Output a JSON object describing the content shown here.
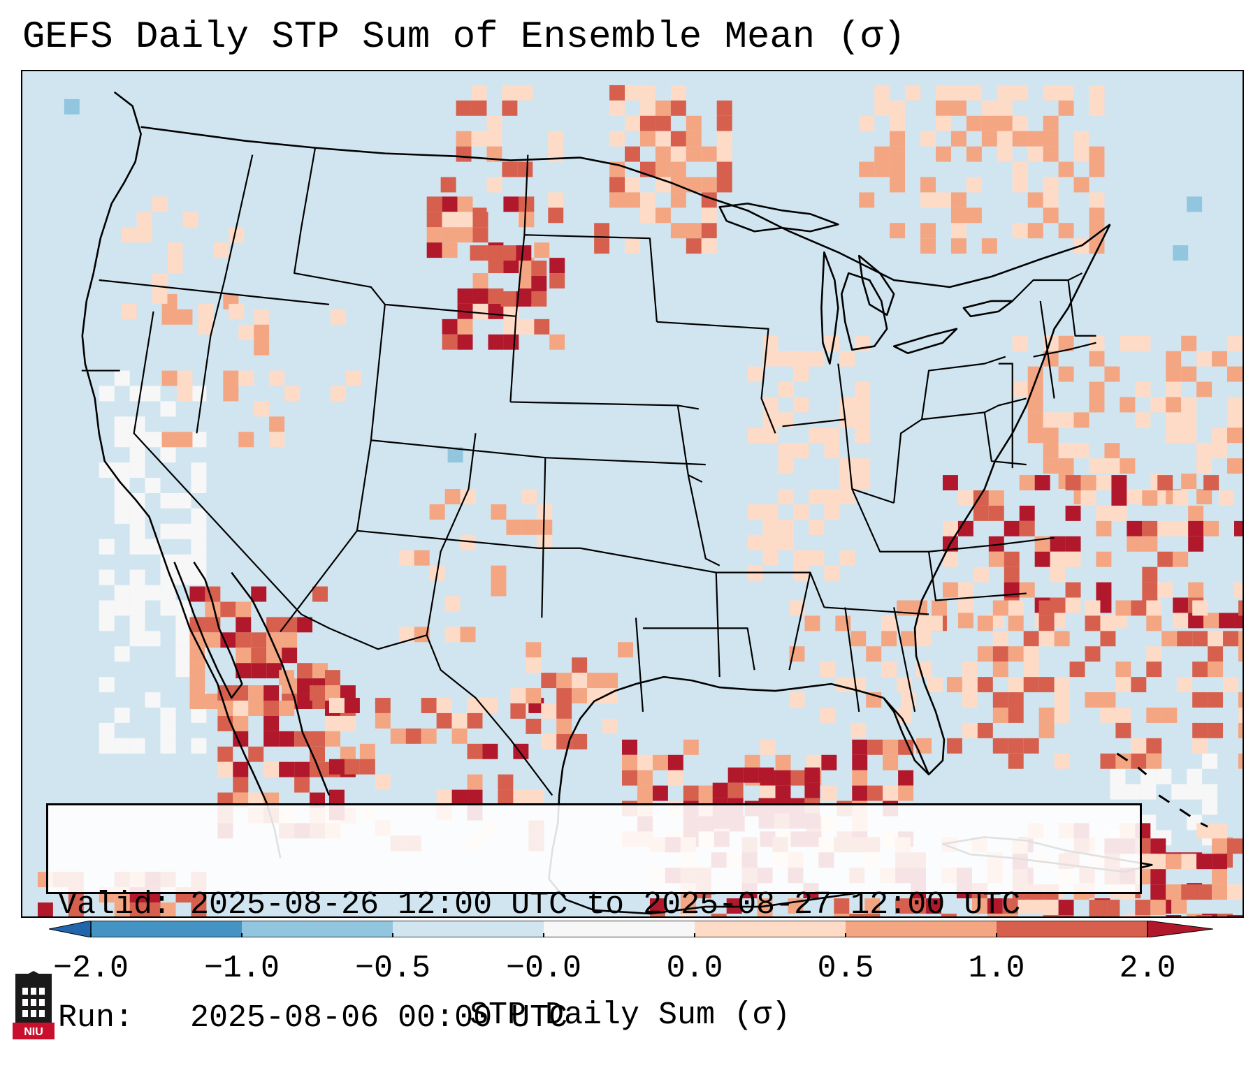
{
  "title": "GEFS Daily STP Sum of Ensemble Mean (σ)",
  "valid_line": "Valid: 2025-08-26 12:00 UTC to 2025-08-27 12:00 UTC",
  "run_line": "Run:   2025-08-06 00:00 UTC",
  "colorbar": {
    "label": "STP Daily Sum (σ)",
    "ticks": [
      "−2.0",
      "−1.0",
      "−0.5",
      "−0.0",
      "0.0",
      "0.5",
      "1.0",
      "2.0"
    ],
    "bins": [
      {
        "range": "< -2.0",
        "color": "#2166ac"
      },
      {
        "range": "-2.0 to -1.0",
        "color": "#4393c3"
      },
      {
        "range": "-1.0 to -0.5",
        "color": "#92c5de"
      },
      {
        "range": "-0.5 to -0.0",
        "color": "#d1e5f0"
      },
      {
        "range": "-0.0 to 0.0",
        "color": "#f7f7f7"
      },
      {
        "range": "0.0 to 0.5",
        "color": "#fddbc7"
      },
      {
        "range": "0.5 to 1.0",
        "color": "#f4a582"
      },
      {
        "range": "1.0 to 2.0",
        "color": "#d6604d"
      },
      {
        "range": "> 2.0",
        "color": "#b2182b"
      }
    ]
  },
  "map": {
    "projection": "Lambert conformal, CONUS",
    "background_color": "#d1e5f0",
    "high_anomaly_regions": [
      "Northern Plains (Dakotas/Montana)",
      "Desert Southwest and northwest Mexico",
      "Northwest Gulf of Mexico",
      "Western Atlantic east of the Southeast coast",
      "Caribbean / southern Mexico"
    ]
  },
  "logo_text": "NIU"
}
